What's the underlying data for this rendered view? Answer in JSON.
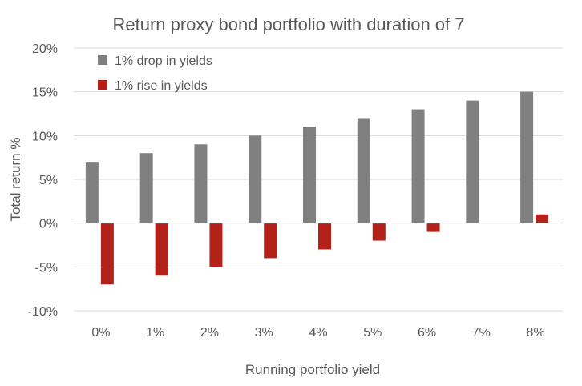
{
  "chart_data": {
    "type": "bar",
    "title": "Return proxy bond portfolio with duration of 7",
    "xlabel": "Running portfolio yield",
    "ylabel": "Total return %",
    "categories": [
      "0%",
      "1%",
      "2%",
      "3%",
      "4%",
      "5%",
      "6%",
      "7%",
      "8%"
    ],
    "series": [
      {
        "name": "1% drop in yields",
        "color": "#808080",
        "values": [
          7,
          8,
          9,
          10,
          11,
          12,
          13,
          14,
          15
        ]
      },
      {
        "name": "1% rise in yields",
        "color": "#b22218",
        "values": [
          -7,
          -6,
          -5,
          -4,
          -3,
          -2,
          -1,
          0,
          1
        ]
      }
    ],
    "ylim": [
      -10,
      20
    ],
    "yticks": [
      -10,
      -5,
      0,
      5,
      10,
      15,
      20
    ],
    "ytick_labels": [
      "-10%",
      "-5%",
      "0%",
      "5%",
      "10%",
      "15%",
      "20%"
    ],
    "grid": true,
    "legend_position": "top-left"
  }
}
